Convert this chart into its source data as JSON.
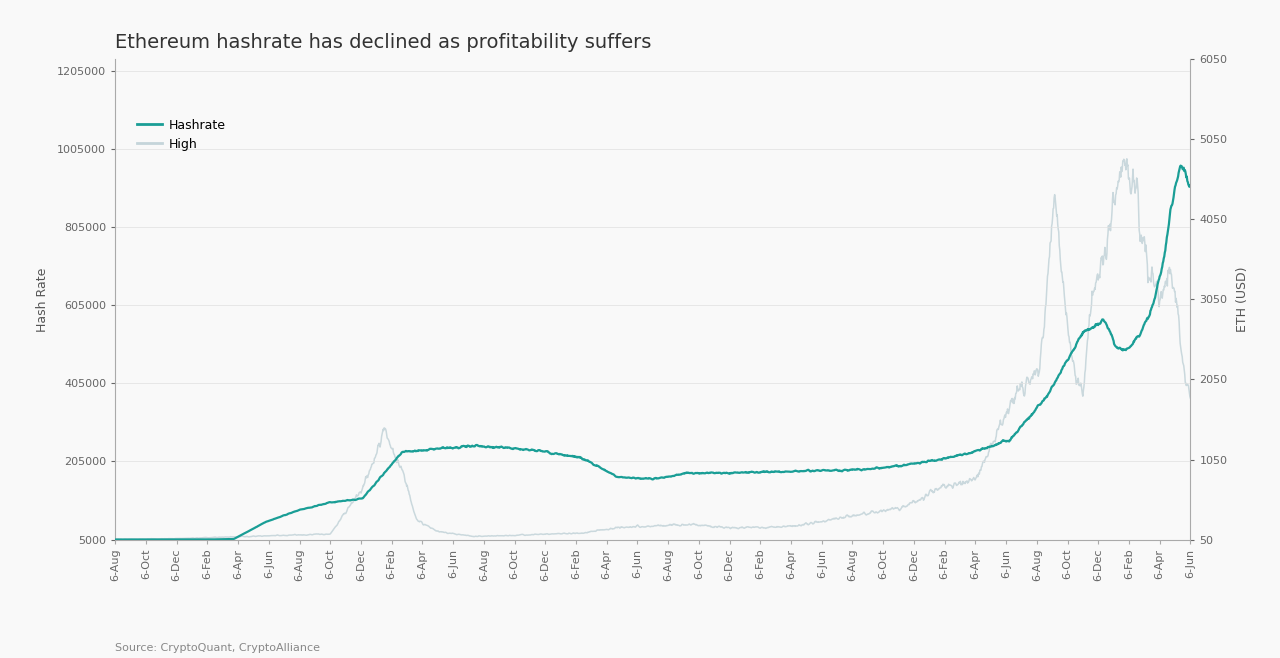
{
  "title": "Ethereum hashrate has declined as profitability suffers",
  "ylabel_left": "Hash Rate",
  "ylabel_right": "ETH (USD)",
  "source": "Source: CryptoQuant, CryptoAlliance",
  "legend_hashrate": "Hashrate",
  "legend_high": "High",
  "hashrate_color": "#1a9e96",
  "high_color": "#c5d5da",
  "background_color": "#f9f9f9",
  "ylim_left": [
    5000,
    1235000
  ],
  "ylim_right": [
    50,
    6050
  ],
  "yticks_left": [
    5000,
    205000,
    405000,
    605000,
    805000,
    1005000,
    1205000
  ],
  "yticks_right": [
    50,
    1050,
    2050,
    3050,
    4050,
    5050,
    6050
  ],
  "title_fontsize": 14,
  "axis_label_fontsize": 9,
  "tick_fontsize": 8
}
